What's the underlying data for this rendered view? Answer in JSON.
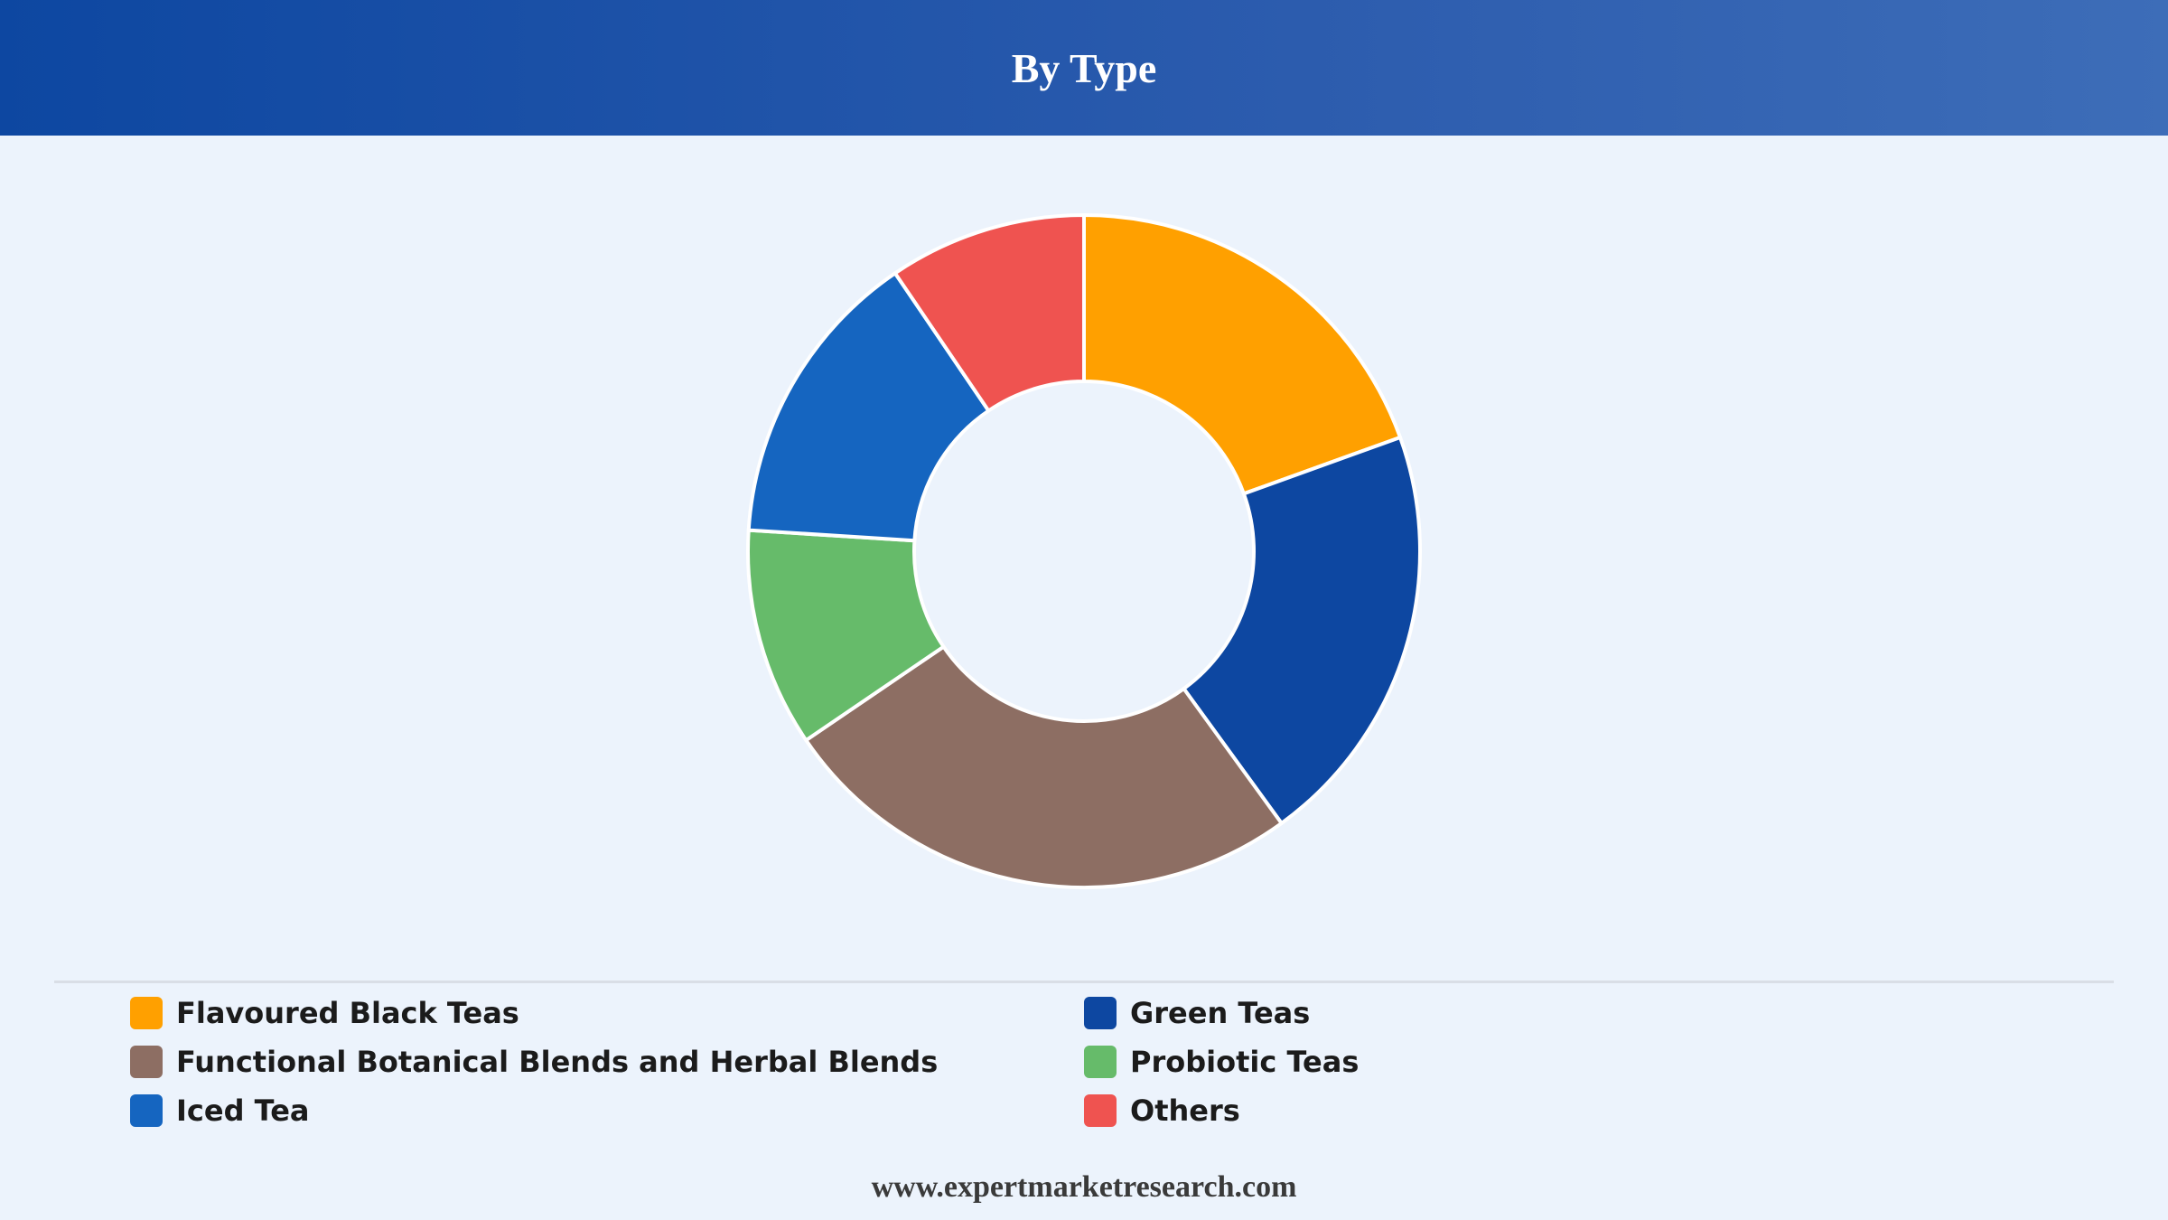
{
  "header": {
    "title": "By Type"
  },
  "chart_data": {
    "type": "pie",
    "variant": "donut",
    "title": "By Type",
    "categories": [
      "Flavoured Black Teas",
      "Green Teas",
      "Functional Botanical Blends and Herbal Blends",
      "Probiotic Teas",
      "Iced Tea",
      "Others"
    ],
    "values": [
      19.5,
      20.5,
      25.5,
      10.5,
      14.5,
      9.5
    ],
    "unit": "%",
    "colors": [
      "#ffa000",
      "#0d47a1",
      "#8d6e63",
      "#66bb6a",
      "#1565c0",
      "#ef5350"
    ],
    "legend_position": "bottom"
  },
  "legend": {
    "items": [
      {
        "label": "Flavoured Black Teas",
        "color": "#ffa000"
      },
      {
        "label": "Green Teas",
        "color": "#0d47a1"
      },
      {
        "label": "Functional Botanical Blends and Herbal Blends",
        "color": "#8d6e63"
      },
      {
        "label": "Probiotic Teas",
        "color": "#66bb6a"
      },
      {
        "label": "Iced Tea",
        "color": "#1565c0"
      },
      {
        "label": "Others",
        "color": "#ef5350"
      }
    ]
  },
  "footer": {
    "website": "www.expertmarketresearch.com"
  }
}
